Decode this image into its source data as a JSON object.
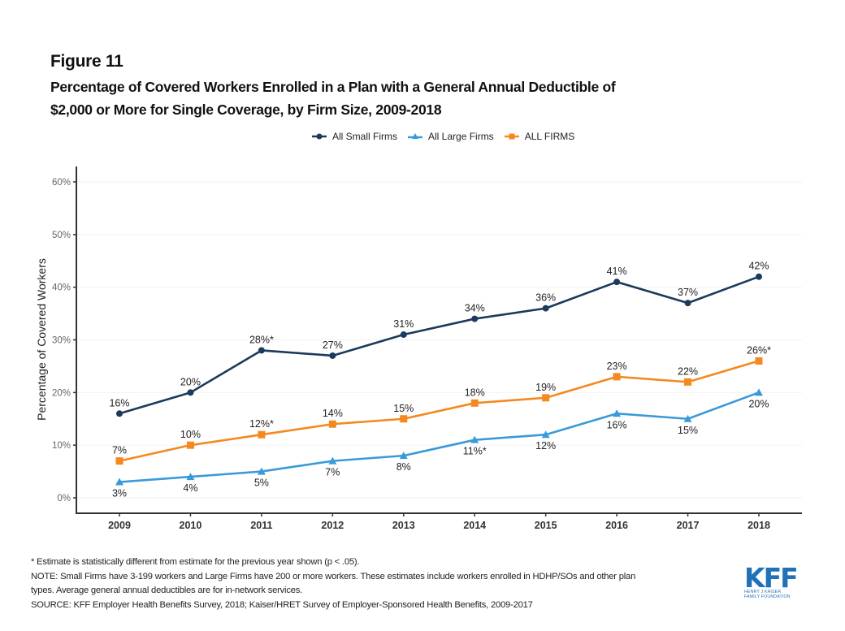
{
  "figure_label": "Figure 11",
  "title_line1": "Percentage of Covered Workers Enrolled in a Plan with a General Annual Deductible of",
  "title_line2": "$2,000 or More for Single Coverage, by Firm Size, 2009-2018",
  "chart_data": {
    "type": "line",
    "title": "Percentage of Covered Workers Enrolled in a Plan with a General Annual Deductible of $2,000 or More for Single Coverage, by Firm Size, 2009-2018",
    "xlabel": "",
    "ylabel": "Percentage of Covered Workers",
    "ylim": [
      0,
      60
    ],
    "yticks": [
      "0%",
      "10%",
      "20%",
      "30%",
      "40%",
      "50%",
      "60%"
    ],
    "ytick_values": [
      0,
      10,
      20,
      30,
      40,
      50,
      60
    ],
    "x": [
      "2009",
      "2010",
      "2011",
      "2012",
      "2013",
      "2014",
      "2015",
      "2016",
      "2017",
      "2018"
    ],
    "grid": true,
    "legend_position": "top-center",
    "series": [
      {
        "name": "All Small Firms",
        "color": "#1b3a5c",
        "marker": "circle",
        "values": [
          16,
          20,
          28,
          27,
          31,
          34,
          36,
          41,
          37,
          42
        ],
        "labels": [
          "16%",
          "20%",
          "28%*",
          "27%",
          "31%",
          "34%",
          "36%",
          "41%",
          "37%",
          "42%"
        ],
        "label_side": [
          "above",
          "above",
          "above",
          "above",
          "above",
          "above",
          "above",
          "above",
          "above",
          "above"
        ]
      },
      {
        "name": "All Large Firms",
        "color": "#3a9ad9",
        "marker": "triangle",
        "values": [
          3,
          4,
          5,
          7,
          8,
          11,
          12,
          16,
          15,
          20
        ],
        "labels": [
          "3%",
          "4%",
          "5%",
          "7%",
          "8%",
          "11%*",
          "12%",
          "16%",
          "15%",
          "20%"
        ],
        "label_side": [
          "below",
          "below",
          "below",
          "below",
          "below",
          "below",
          "below",
          "below",
          "below",
          "below"
        ]
      },
      {
        "name": "ALL FIRMS",
        "color": "#f4891f",
        "marker": "square",
        "values": [
          7,
          10,
          12,
          14,
          15,
          18,
          19,
          23,
          22,
          26
        ],
        "labels": [
          "7%",
          "10%",
          "12%*",
          "14%",
          "15%",
          "18%",
          "19%",
          "23%",
          "22%",
          "26%*"
        ],
        "label_side": [
          "above",
          "above",
          "above",
          "above",
          "above",
          "above",
          "above",
          "above",
          "above",
          "above"
        ]
      }
    ]
  },
  "footnotes": {
    "asterisk": "* Estimate is statistically different from estimate for the previous year shown (p < .05).",
    "note_line1": "NOTE: Small Firms have 3-199 workers and Large Firms have 200 or more workers. These estimates include workers enrolled in HDHP/SOs and other plan",
    "note_line2": "types. Average general annual deductibles are for in-network services.",
    "source": "SOURCE: KFF Employer Health Benefits Survey, 2018; Kaiser/HRET Survey of Employer-Sponsored Health Benefits, 2009-2017"
  },
  "logo": {
    "mark": "KFF",
    "line1": "HENRY J KAISER",
    "line2": "FAMILY FOUNDATION",
    "color": "#1f72b8"
  }
}
